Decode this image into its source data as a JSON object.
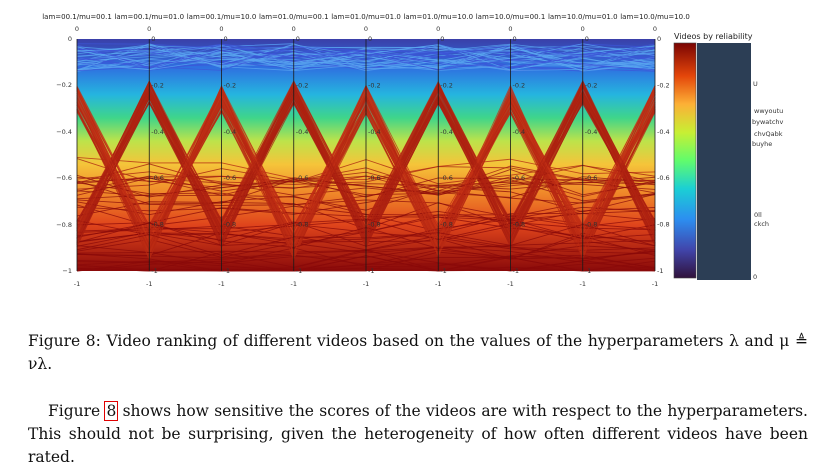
{
  "figure": {
    "axes": [
      "lam=00.1/mu=00.1",
      "lam=00.1/mu=01.0",
      "lam=00.1/mu=10.0",
      "lam=01.0/mu=00.1",
      "lam=01.0/mu=01.0",
      "lam=01.0/mu=10.0",
      "lam=10.0/mu=00.1",
      "lam=10.0/mu=01.0",
      "lam=10.0/mu=10.0"
    ],
    "top_tick_label": "0",
    "bottom_tick_label": "-1",
    "y_ticks": [
      "0",
      "−0.2",
      "−0.4",
      "−0.6",
      "−0.8",
      "−1"
    ],
    "inner_ticks": [
      "0",
      "-0.2",
      "-0.4",
      "-0.6",
      "-0.8",
      "-1"
    ],
    "colorbar_title": "Videos by reliability",
    "colorbar_fragments": [
      "wwyoutu",
      "bywatchv",
      "chvQabk",
      "buyhe",
      "0ll",
      "ckch",
      "U",
      "0"
    ]
  },
  "chart_data": {
    "type": "parallel-coordinates",
    "axes": [
      "lam=00.1/mu=00.1",
      "lam=00.1/mu=01.0",
      "lam=00.1/mu=10.0",
      "lam=01.0/mu=00.1",
      "lam=01.0/mu=01.0",
      "lam=01.0/mu=10.0",
      "lam=10.0/mu=00.1",
      "lam=10.0/mu=01.0",
      "lam=10.0/mu=10.0"
    ],
    "ylim": [
      -1,
      0
    ],
    "yticks": [
      0,
      -0.2,
      -0.4,
      -0.6,
      -0.8,
      -1
    ],
    "colorbar_label": "Videos by reliability"
  },
  "caption": {
    "label": "Figure 8:",
    "text": "Video ranking of different videos based on the values of the hyperparameters λ and μ ≜ νλ."
  },
  "paragraph": {
    "before_ref": "Figure ",
    "ref": "8",
    "after_ref": " shows how sensitive the scores of the videos are with respect to the hyperparameters. This should not be surprising, given the heterogeneity of how often different videos have been rated."
  },
  "colors": {
    "ref_box": "#e00000"
  }
}
